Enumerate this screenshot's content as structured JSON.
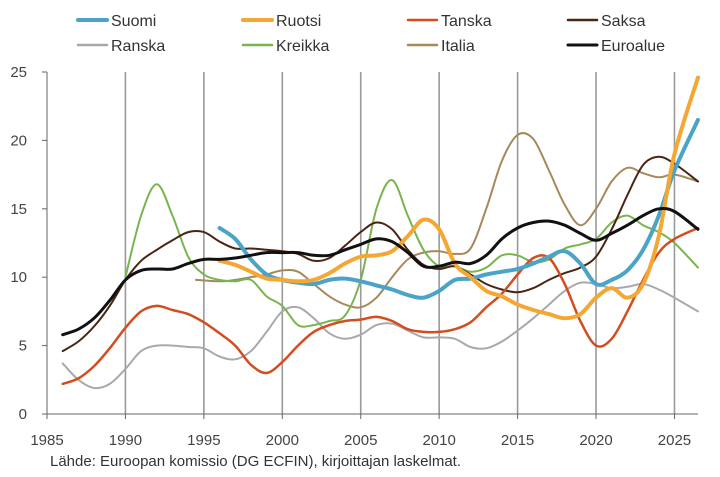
{
  "chart_data": {
    "type": "line",
    "xlim": [
      1985,
      2026.5
    ],
    "ylim": [
      0,
      25
    ],
    "x_ticks": [
      "1985",
      "1990",
      "1995",
      "2000",
      "2005",
      "2010",
      "2015",
      "2020",
      "2025"
    ],
    "y_ticks": [
      "0",
      "5",
      "10",
      "15",
      "20",
      "25"
    ],
    "grid": "vertical",
    "legend_position": "top",
    "series": [
      {
        "name": "Suomi",
        "color": "#4ba3c7",
        "width": 4,
        "points": [
          [
            1996,
            13.6
          ],
          [
            1997,
            12.8
          ],
          [
            1998,
            11.3
          ],
          [
            1999,
            10.2
          ],
          [
            2000,
            9.8
          ],
          [
            2001,
            9.6
          ],
          [
            2002,
            9.5
          ],
          [
            2003,
            9.8
          ],
          [
            2004,
            9.9
          ],
          [
            2005,
            9.7
          ],
          [
            2006,
            9.4
          ],
          [
            2007,
            9.1
          ],
          [
            2008,
            8.7
          ],
          [
            2009,
            8.5
          ],
          [
            2010,
            9.0
          ],
          [
            2011,
            9.8
          ],
          [
            2012,
            9.9
          ],
          [
            2013,
            10.2
          ],
          [
            2014,
            10.4
          ],
          [
            2015,
            10.6
          ],
          [
            2016,
            11.0
          ],
          [
            2017,
            11.5
          ],
          [
            2018,
            11.9
          ],
          [
            2019,
            11.0
          ],
          [
            2020,
            9.5
          ],
          [
            2021,
            9.8
          ],
          [
            2022,
            10.5
          ],
          [
            2023,
            12.0
          ],
          [
            2024,
            14.5
          ],
          [
            2025,
            17.8
          ],
          [
            2026.5,
            21.5
          ]
        ]
      },
      {
        "name": "Ruotsi",
        "color": "#f4a733",
        "width": 4,
        "points": [
          [
            1996,
            11.2
          ],
          [
            1997,
            10.9
          ],
          [
            1998,
            10.4
          ],
          [
            1999,
            9.9
          ],
          [
            2000,
            9.8
          ],
          [
            2001,
            9.7
          ],
          [
            2002,
            9.8
          ],
          [
            2003,
            10.3
          ],
          [
            2004,
            11.0
          ],
          [
            2005,
            11.5
          ],
          [
            2006,
            11.6
          ],
          [
            2007,
            11.9
          ],
          [
            2008,
            13.0
          ],
          [
            2009,
            14.2
          ],
          [
            2010,
            13.5
          ],
          [
            2011,
            11.0
          ],
          [
            2012,
            10.0
          ],
          [
            2013,
            9.0
          ],
          [
            2014,
            8.6
          ],
          [
            2015,
            8.0
          ],
          [
            2016,
            7.6
          ],
          [
            2017,
            7.3
          ],
          [
            2018,
            7.0
          ],
          [
            2019,
            7.3
          ],
          [
            2020,
            8.5
          ],
          [
            2021,
            9.2
          ],
          [
            2022,
            8.5
          ],
          [
            2023,
            9.5
          ],
          [
            2024,
            13.0
          ],
          [
            2025,
            19.0
          ],
          [
            2026.5,
            24.6
          ]
        ]
      },
      {
        "name": "Tanska",
        "color": "#d24d1f",
        "width": 2.5,
        "points": [
          [
            1986,
            2.2
          ],
          [
            1987,
            2.6
          ],
          [
            1988,
            3.5
          ],
          [
            1989,
            4.8
          ],
          [
            1990,
            6.3
          ],
          [
            1991,
            7.5
          ],
          [
            1992,
            7.9
          ],
          [
            1993,
            7.6
          ],
          [
            1994,
            7.3
          ],
          [
            1995,
            6.7
          ],
          [
            1996,
            5.9
          ],
          [
            1997,
            5.0
          ],
          [
            1998,
            3.6
          ],
          [
            1999,
            3.0
          ],
          [
            2000,
            3.8
          ],
          [
            2001,
            5.0
          ],
          [
            2002,
            6.0
          ],
          [
            2003,
            6.5
          ],
          [
            2004,
            6.8
          ],
          [
            2005,
            6.9
          ],
          [
            2006,
            7.1
          ],
          [
            2007,
            6.8
          ],
          [
            2008,
            6.2
          ],
          [
            2009,
            6.0
          ],
          [
            2010,
            6.0
          ],
          [
            2011,
            6.2
          ],
          [
            2012,
            6.7
          ],
          [
            2013,
            7.8
          ],
          [
            2014,
            8.8
          ],
          [
            2015,
            10.2
          ],
          [
            2016,
            11.4
          ],
          [
            2017,
            11.4
          ],
          [
            2018,
            9.5
          ],
          [
            2019,
            6.8
          ],
          [
            2020,
            5.0
          ],
          [
            2021,
            5.5
          ],
          [
            2022,
            7.5
          ],
          [
            2023,
            9.8
          ],
          [
            2024,
            11.8
          ],
          [
            2025,
            12.8
          ],
          [
            2026.5,
            13.6
          ]
        ]
      },
      {
        "name": "Saksa",
        "color": "#4a2514",
        "width": 2,
        "points": [
          [
            1986,
            4.6
          ],
          [
            1987,
            5.3
          ],
          [
            1988,
            6.4
          ],
          [
            1989,
            7.9
          ],
          [
            1990,
            9.8
          ],
          [
            1991,
            11.2
          ],
          [
            1992,
            12.0
          ],
          [
            1993,
            12.7
          ],
          [
            1994,
            13.3
          ],
          [
            1995,
            13.3
          ],
          [
            1996,
            12.6
          ],
          [
            1997,
            12.1
          ],
          [
            1998,
            12.1
          ],
          [
            1999,
            12.0
          ],
          [
            2000,
            11.9
          ],
          [
            2001,
            11.7
          ],
          [
            2002,
            11.2
          ],
          [
            2003,
            11.4
          ],
          [
            2004,
            12.3
          ],
          [
            2005,
            13.3
          ],
          [
            2006,
            14.0
          ],
          [
            2007,
            13.5
          ],
          [
            2008,
            12.0
          ],
          [
            2009,
            10.9
          ],
          [
            2010,
            10.6
          ],
          [
            2011,
            10.8
          ],
          [
            2012,
            10.2
          ],
          [
            2013,
            9.5
          ],
          [
            2014,
            9.1
          ],
          [
            2015,
            8.9
          ],
          [
            2016,
            9.2
          ],
          [
            2017,
            9.8
          ],
          [
            2018,
            10.3
          ],
          [
            2019,
            10.7
          ],
          [
            2020,
            11.5
          ],
          [
            2021,
            13.5
          ],
          [
            2022,
            16.0
          ],
          [
            2023,
            18.2
          ],
          [
            2024,
            18.8
          ],
          [
            2025,
            18.3
          ],
          [
            2026.5,
            17.0
          ]
        ]
      },
      {
        "name": "Ranska",
        "color": "#a9a9a9",
        "width": 2,
        "points": [
          [
            1986,
            3.7
          ],
          [
            1987,
            2.5
          ],
          [
            1988,
            1.9
          ],
          [
            1989,
            2.2
          ],
          [
            1990,
            3.3
          ],
          [
            1991,
            4.6
          ],
          [
            1992,
            5.0
          ],
          [
            1993,
            5.0
          ],
          [
            1994,
            4.9
          ],
          [
            1995,
            4.8
          ],
          [
            1996,
            4.2
          ],
          [
            1997,
            4.0
          ],
          [
            1998,
            4.6
          ],
          [
            1999,
            6.0
          ],
          [
            2000,
            7.5
          ],
          [
            2001,
            7.8
          ],
          [
            2002,
            7.0
          ],
          [
            2003,
            5.9
          ],
          [
            2004,
            5.5
          ],
          [
            2005,
            5.8
          ],
          [
            2006,
            6.5
          ],
          [
            2007,
            6.6
          ],
          [
            2008,
            6.1
          ],
          [
            2009,
            5.6
          ],
          [
            2010,
            5.6
          ],
          [
            2011,
            5.5
          ],
          [
            2012,
            4.9
          ],
          [
            2013,
            4.8
          ],
          [
            2014,
            5.3
          ],
          [
            2015,
            6.1
          ],
          [
            2016,
            7.0
          ],
          [
            2017,
            8.0
          ],
          [
            2018,
            9.0
          ],
          [
            2019,
            9.6
          ],
          [
            2020,
            9.5
          ],
          [
            2021,
            9.2
          ],
          [
            2022,
            9.3
          ],
          [
            2023,
            9.5
          ],
          [
            2024,
            9.1
          ],
          [
            2025,
            8.5
          ],
          [
            2026.5,
            7.5
          ]
        ]
      },
      {
        "name": "Kreikka",
        "color": "#78b54e",
        "width": 2,
        "points": [
          [
            1990,
            10.0
          ],
          [
            1991,
            14.5
          ],
          [
            1992,
            16.8
          ],
          [
            1993,
            14.5
          ],
          [
            1994,
            11.5
          ],
          [
            1995,
            10.2
          ],
          [
            1996,
            9.8
          ],
          [
            1997,
            9.7
          ],
          [
            1998,
            9.8
          ],
          [
            1999,
            8.6
          ],
          [
            2000,
            7.9
          ],
          [
            2001,
            6.5
          ],
          [
            2002,
            6.5
          ],
          [
            2003,
            6.8
          ],
          [
            2004,
            7.2
          ],
          [
            2005,
            9.8
          ],
          [
            2006,
            15.0
          ],
          [
            2007,
            17.1
          ],
          [
            2008,
            14.5
          ],
          [
            2009,
            12.0
          ],
          [
            2010,
            10.8
          ],
          [
            2011,
            10.8
          ],
          [
            2012,
            10.4
          ],
          [
            2013,
            10.7
          ],
          [
            2014,
            11.6
          ],
          [
            2015,
            11.6
          ],
          [
            2016,
            11.1
          ],
          [
            2017,
            11.3
          ],
          [
            2018,
            12.1
          ],
          [
            2019,
            12.4
          ],
          [
            2020,
            12.8
          ],
          [
            2021,
            14.0
          ],
          [
            2022,
            14.5
          ],
          [
            2023,
            13.8
          ],
          [
            2024,
            13.3
          ],
          [
            2025,
            12.5
          ],
          [
            2026.5,
            10.7
          ]
        ]
      },
      {
        "name": "Italia",
        "color": "#a6885a",
        "width": 2,
        "points": [
          [
            1994.5,
            9.8
          ],
          [
            1996,
            9.7
          ],
          [
            1997,
            9.8
          ],
          [
            1998,
            10.0
          ],
          [
            1999,
            10.2
          ],
          [
            2000,
            10.5
          ],
          [
            2001,
            10.4
          ],
          [
            2002,
            9.5
          ],
          [
            2003,
            8.6
          ],
          [
            2004,
            8.0
          ],
          [
            2005,
            7.8
          ],
          [
            2006,
            8.5
          ],
          [
            2007,
            10.0
          ],
          [
            2008,
            11.3
          ],
          [
            2009,
            11.8
          ],
          [
            2010,
            11.9
          ],
          [
            2011,
            11.7
          ],
          [
            2012,
            12.1
          ],
          [
            2013,
            15.0
          ],
          [
            2014,
            18.5
          ],
          [
            2015,
            20.4
          ],
          [
            2016,
            20.1
          ],
          [
            2017,
            17.8
          ],
          [
            2018,
            15.3
          ],
          [
            2019,
            13.8
          ],
          [
            2020,
            15.0
          ],
          [
            2021,
            17.0
          ],
          [
            2022,
            18.0
          ],
          [
            2023,
            17.6
          ],
          [
            2024,
            17.3
          ],
          [
            2025,
            17.5
          ],
          [
            2026.5,
            17.0
          ]
        ]
      },
      {
        "name": "Euroalue",
        "color": "#111111",
        "width": 3,
        "points": [
          [
            1986,
            5.8
          ],
          [
            1987,
            6.2
          ],
          [
            1988,
            7.0
          ],
          [
            1989,
            8.3
          ],
          [
            1990,
            9.8
          ],
          [
            1991,
            10.5
          ],
          [
            1992,
            10.6
          ],
          [
            1993,
            10.6
          ],
          [
            1994,
            11.0
          ],
          [
            1995,
            11.3
          ],
          [
            1996,
            11.3
          ],
          [
            1997,
            11.4
          ],
          [
            1998,
            11.6
          ],
          [
            1999,
            11.8
          ],
          [
            2000,
            11.8
          ],
          [
            2001,
            11.8
          ],
          [
            2002,
            11.6
          ],
          [
            2003,
            11.6
          ],
          [
            2004,
            12.0
          ],
          [
            2005,
            12.4
          ],
          [
            2006,
            12.8
          ],
          [
            2007,
            12.6
          ],
          [
            2008,
            11.8
          ],
          [
            2009,
            10.8
          ],
          [
            2010,
            10.8
          ],
          [
            2011,
            11.1
          ],
          [
            2012,
            11.0
          ],
          [
            2013,
            11.6
          ],
          [
            2014,
            12.8
          ],
          [
            2015,
            13.6
          ],
          [
            2016,
            14.0
          ],
          [
            2017,
            14.1
          ],
          [
            2018,
            13.8
          ],
          [
            2019,
            13.2
          ],
          [
            2020,
            12.7
          ],
          [
            2021,
            13.2
          ],
          [
            2022,
            13.8
          ],
          [
            2023,
            14.5
          ],
          [
            2024,
            15.0
          ],
          [
            2025,
            14.8
          ],
          [
            2026.5,
            13.5
          ]
        ]
      }
    ]
  },
  "source": "Lähde: Euroopan komissio (DG ECFIN), kirjoittajan laskelmat."
}
